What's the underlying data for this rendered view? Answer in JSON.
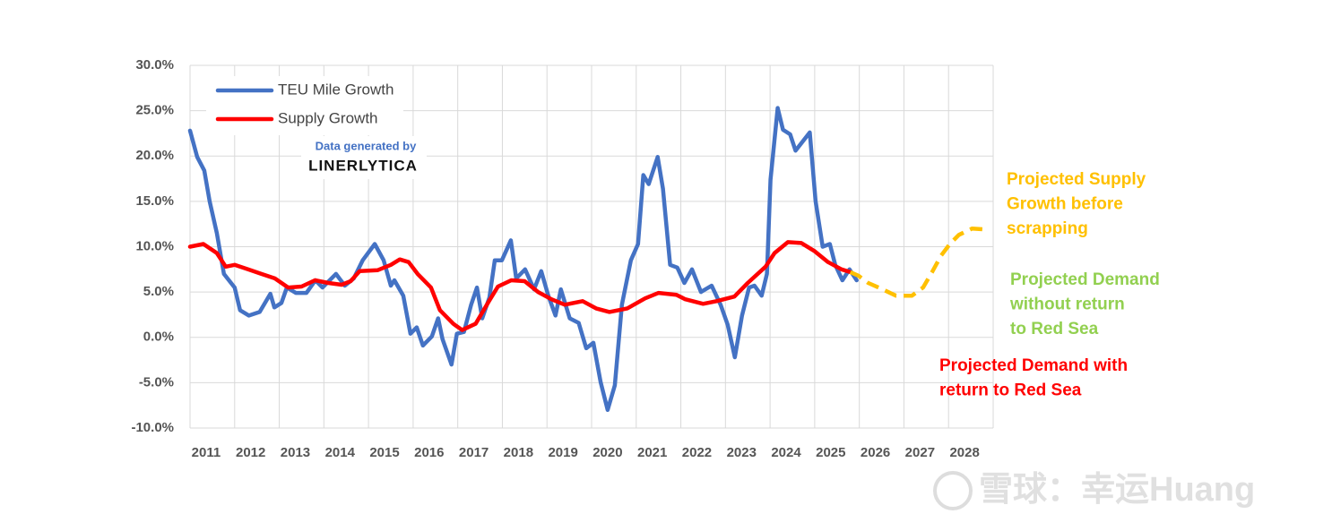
{
  "chart_data": {
    "type": "line",
    "xlim": [
      2011,
      2029
    ],
    "xticks": [
      2011,
      2012,
      2013,
      2014,
      2015,
      2016,
      2017,
      2018,
      2019,
      2020,
      2021,
      2022,
      2023,
      2024,
      2025,
      2026,
      2027,
      2028
    ],
    "ylim": [
      -10,
      30
    ],
    "yticks": [
      {
        "value": -10,
        "label": "-10.0%"
      },
      {
        "value": -5,
        "label": "-5.0%"
      },
      {
        "value": 0,
        "label": "0.0%"
      },
      {
        "value": 5,
        "label": "5.0%"
      },
      {
        "value": 10,
        "label": "10.0%"
      },
      {
        "value": 15,
        "label": "15.0%"
      },
      {
        "value": 20,
        "label": "20.0%"
      },
      {
        "value": 25,
        "label": "25.0%"
      },
      {
        "value": 30,
        "label": "30.0%"
      }
    ],
    "grid": true,
    "legend": "upper left",
    "series": [
      {
        "name": "TEU Mile Growth",
        "color": "#4472c4",
        "x": [
          2011.0,
          2011.16,
          2011.32,
          2011.44,
          2011.6,
          2011.76,
          2012.0,
          2012.12,
          2012.32,
          2012.56,
          2012.8,
          2012.89,
          2013.05,
          2013.17,
          2013.37,
          2013.61,
          2013.81,
          2013.97,
          2014.27,
          2014.47,
          2014.67,
          2014.87,
          2015.14,
          2015.34,
          2015.5,
          2015.58,
          2015.78,
          2015.94,
          2016.08,
          2016.22,
          2016.42,
          2016.56,
          2016.66,
          2016.86,
          2016.98,
          2017.14,
          2017.3,
          2017.43,
          2017.55,
          2017.71,
          2017.83,
          2017.99,
          2018.19,
          2018.31,
          2018.51,
          2018.71,
          2018.87,
          2019.03,
          2019.19,
          2019.31,
          2019.51,
          2019.71,
          2019.88,
          2020.04,
          2020.2,
          2020.36,
          2020.52,
          2020.68,
          2020.88,
          2021.04,
          2021.16,
          2021.28,
          2021.48,
          2021.6,
          2021.76,
          2021.92,
          2022.08,
          2022.25,
          2022.45,
          2022.69,
          2022.89,
          2023.05,
          2023.21,
          2023.37,
          2023.53,
          2023.65,
          2023.81,
          2023.93,
          2024.01,
          2024.17,
          2024.29,
          2024.45,
          2024.57,
          2024.73,
          2024.89,
          2025.02,
          2025.18,
          2025.34,
          2025.46,
          2025.62,
          2025.78,
          2025.94
        ],
        "values": [
          22.8,
          19.9,
          18.4,
          15,
          11.5,
          7,
          5.5,
          3,
          2.4,
          2.8,
          4.8,
          3.3,
          3.8,
          5.5,
          4.9,
          4.9,
          6.3,
          5.5,
          7,
          5.7,
          6.5,
          8.5,
          10.3,
          8.5,
          5.7,
          6.3,
          4.6,
          0.4,
          1.1,
          -0.9,
          0.1,
          2.1,
          -0.2,
          -3,
          0.4,
          0.6,
          3.6,
          5.5,
          2.1,
          4.4,
          8.5,
          8.5,
          10.7,
          6.5,
          7.5,
          5.3,
          7.3,
          4.6,
          2.4,
          5.3,
          2.1,
          1.6,
          -1.2,
          -0.6,
          -4.9,
          -8,
          -5.3,
          3.6,
          8.5,
          10.3,
          17.9,
          16.9,
          19.9,
          16.4,
          8,
          7.7,
          6,
          7.5,
          5,
          5.7,
          3.6,
          1.4,
          -2.2,
          2.4,
          5.5,
          5.7,
          4.6,
          7,
          17.4,
          25.3,
          22.9,
          22.4,
          20.6,
          21.6,
          22.6,
          15,
          10,
          10.3,
          8,
          6.3,
          7.5,
          6.3
        ]
      },
      {
        "name": "Supply Growth",
        "color": "#ff0000",
        "x": [
          2011.0,
          2011.3,
          2011.6,
          2011.8,
          2012.0,
          2012.3,
          2012.6,
          2012.9,
          2013.2,
          2013.5,
          2013.8,
          2014.1,
          2014.4,
          2014.6,
          2014.8,
          2015.2,
          2015.5,
          2015.7,
          2015.9,
          2016.1,
          2016.4,
          2016.6,
          2016.9,
          2017.1,
          2017.4,
          2017.7,
          2017.9,
          2018.2,
          2018.5,
          2018.8,
          2019.1,
          2019.4,
          2019.8,
          2020.1,
          2020.4,
          2020.8,
          2021.2,
          2021.5,
          2021.9,
          2022.1,
          2022.5,
          2022.8,
          2023.2,
          2023.5,
          2023.9,
          2024.1,
          2024.4,
          2024.7,
          2025.0,
          2025.3,
          2025.6,
          2025.8
        ],
        "values": [
          10.0,
          10.3,
          9.3,
          7.8,
          8.0,
          7.5,
          7.0,
          6.5,
          5.5,
          5.6,
          6.3,
          6.0,
          5.8,
          6.2,
          7.3,
          7.4,
          8.0,
          8.6,
          8.3,
          7.0,
          5.5,
          3.0,
          1.5,
          0.8,
          1.5,
          4.0,
          5.6,
          6.3,
          6.2,
          5.0,
          4.2,
          3.6,
          4.0,
          3.2,
          2.8,
          3.2,
          4.3,
          4.9,
          4.7,
          4.2,
          3.7,
          4.0,
          4.5,
          6.0,
          7.8,
          9.3,
          10.5,
          10.4,
          9.5,
          8.3,
          7.5,
          7.2
        ]
      },
      {
        "color": "#ffc000",
        "dashed": true,
        "x": [
          2025.8,
          2025.98,
          2026.2,
          2026.52,
          2026.82,
          2027.18,
          2027.43,
          2027.63,
          2027.83,
          2028.03,
          2028.23,
          2028.53,
          2028.83
        ],
        "values": [
          7.2,
          6.8,
          6.0,
          5.3,
          4.6,
          4.6,
          5.5,
          7.2,
          9.0,
          10.3,
          11.3,
          12.0,
          11.9
        ]
      }
    ],
    "annotations": [
      {
        "lines": [
          "Projected Supply",
          "Growth before",
          "scrapping"
        ],
        "color": "#ffc000"
      },
      {
        "lines": [
          "Projected Demand",
          "without return",
          "to Red Sea"
        ],
        "color": "#92d050"
      },
      {
        "lines": [
          "Projected Demand with",
          "return to Red Sea"
        ],
        "color": "#ff0000"
      }
    ],
    "source": [
      "Data generated by",
      "LINERLYTICA"
    ]
  },
  "watermark": "雪球：幸运Huang"
}
